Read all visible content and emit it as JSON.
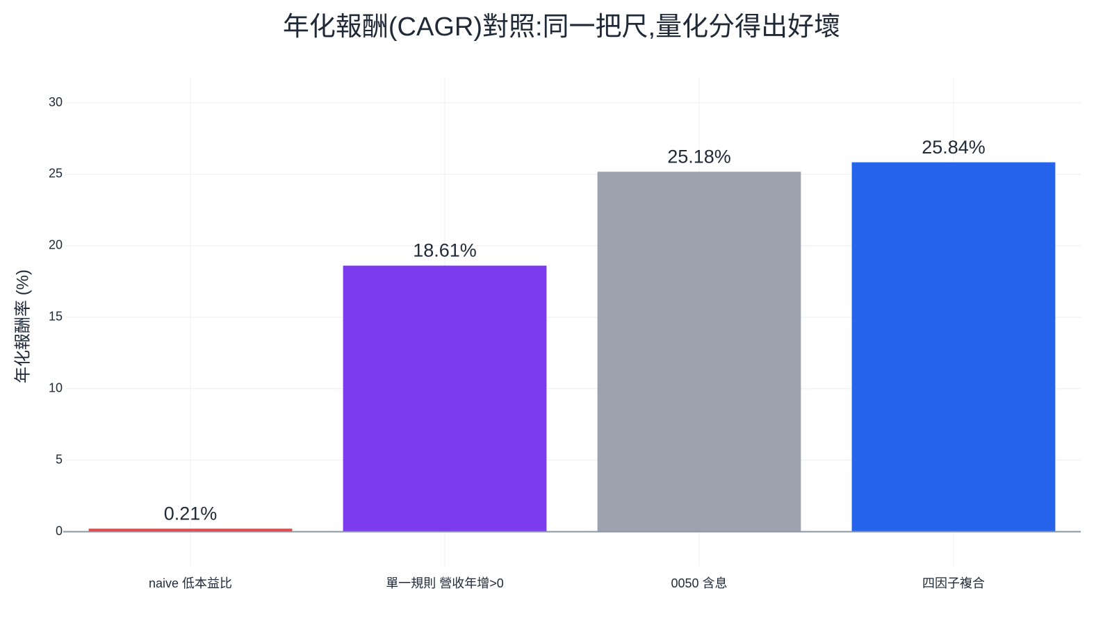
{
  "chart_data": {
    "type": "bar",
    "title": "年化報酬(CAGR)對照:同一把尺,量化分得出好壞",
    "y_label": "年化報酬率 (%)",
    "categories": [
      "naive 低本益比",
      "單一規則 營收年增>0",
      "0050 含息",
      "四因子複合"
    ],
    "values": [
      0.21,
      18.61,
      25.18,
      25.84
    ],
    "value_labels": [
      "0.21%",
      "18.61%",
      "25.18%",
      "25.84%"
    ],
    "colors": [
      "#ef4444",
      "#7c3aed",
      "#9ca3af",
      "#2563eb"
    ],
    "ylim": [
      -2.4,
      31.8
    ],
    "yticks": [
      0,
      5,
      10,
      15,
      20,
      25,
      30
    ],
    "grid": true
  }
}
